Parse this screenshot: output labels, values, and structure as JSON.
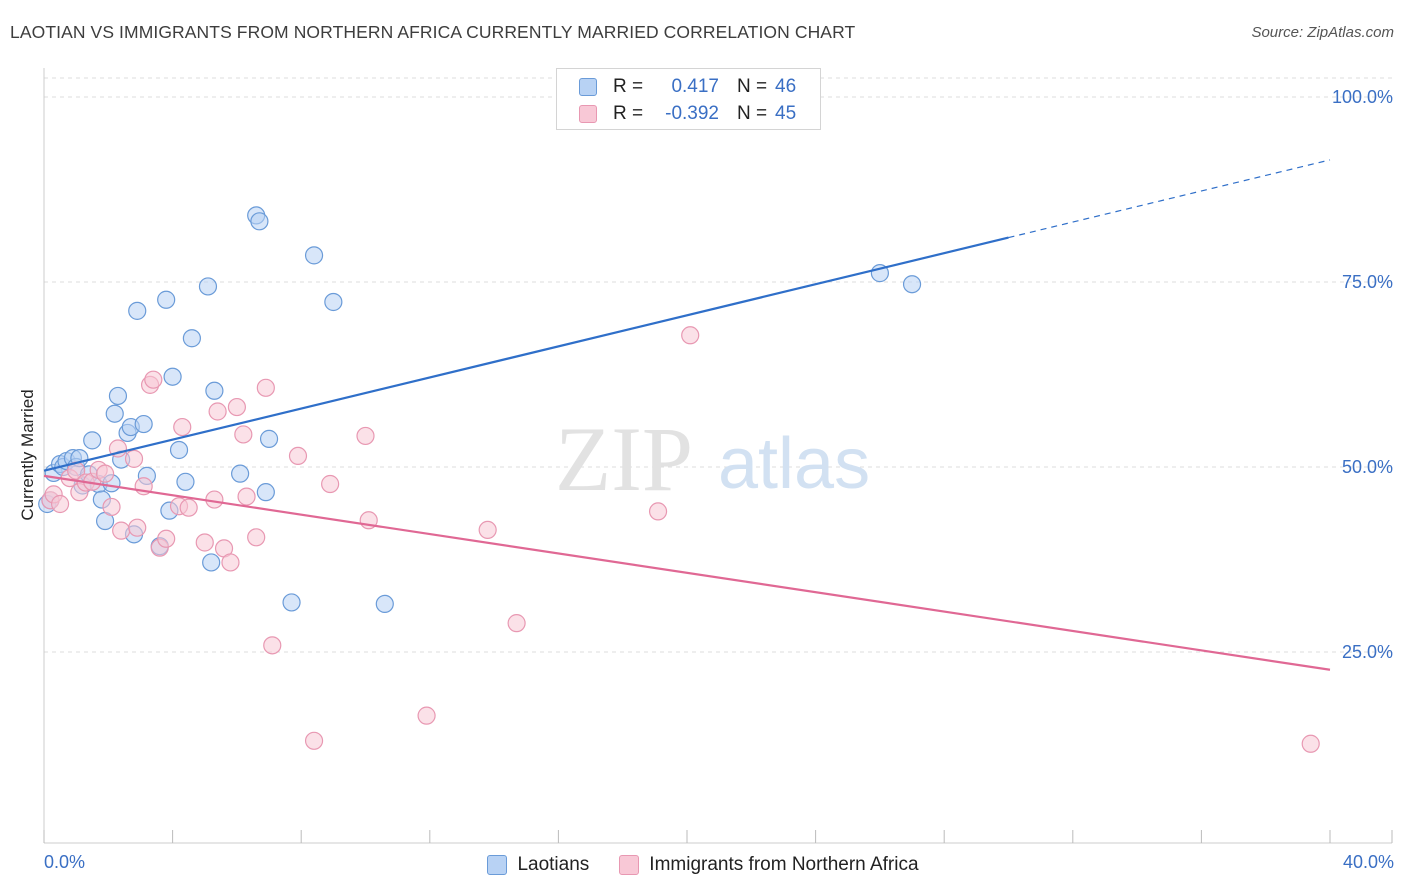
{
  "title": "LAOTIAN VS IMMIGRANTS FROM NORTHERN AFRICA CURRENTLY MARRIED CORRELATION CHART",
  "source": "Source: ZipAtlas.com",
  "watermark": {
    "zip": "ZIP",
    "atlas": "atlas"
  },
  "legend": {
    "rows": [
      {
        "r_label": "R =",
        "r_value": "0.417",
        "n_label": "N =",
        "n_value": "46"
      },
      {
        "r_label": "R =",
        "r_value": "-0.392",
        "n_label": "N =",
        "n_value": "45"
      }
    ]
  },
  "bottom_legend": {
    "series1": "Laotians",
    "series2": "Immigrants from Northern Africa"
  },
  "colors": {
    "blue_fill": "#b8d2f4",
    "blue_stroke": "#6a9bd8",
    "blue_line": "#2f6fc9",
    "pink_fill": "#f8c8d6",
    "pink_stroke": "#e898b2",
    "pink_line": "#e06894",
    "tick_label": "#3a6fc4",
    "grid": "#dddddd"
  },
  "chart_data": {
    "type": "scatter",
    "title": "LAOTIAN VS IMMIGRANTS FROM NORTHERN AFRICA CURRENTLY MARRIED CORRELATION CHART",
    "xlabel": "",
    "ylabel": "Currently Married",
    "xlim": [
      0,
      40
    ],
    "ylim": [
      0,
      105
    ],
    "x_tick_labels": [
      "0.0%",
      "40.0%"
    ],
    "y_ticks": [
      25,
      50,
      75,
      100
    ],
    "y_tick_labels": [
      "25.0%",
      "50.0%",
      "75.0%",
      "100.0%"
    ],
    "grid": "horizontal dashed",
    "legend_position": "top-center",
    "series": [
      {
        "name": "Laotians",
        "points": [
          [
            0.1,
            45.0
          ],
          [
            0.2,
            45.5
          ],
          [
            0.3,
            49.2
          ],
          [
            0.5,
            50.4
          ],
          [
            0.6,
            50.0
          ],
          [
            0.7,
            50.8
          ],
          [
            0.9,
            51.2
          ],
          [
            1.0,
            50.0
          ],
          [
            1.1,
            51.2
          ],
          [
            1.2,
            47.5
          ],
          [
            1.4,
            49.0
          ],
          [
            1.5,
            53.6
          ],
          [
            1.7,
            47.7
          ],
          [
            1.8,
            45.6
          ],
          [
            1.9,
            42.7
          ],
          [
            2.1,
            47.8
          ],
          [
            2.2,
            57.2
          ],
          [
            2.3,
            59.6
          ],
          [
            2.4,
            51.0
          ],
          [
            2.6,
            54.6
          ],
          [
            2.7,
            55.4
          ],
          [
            2.8,
            40.9
          ],
          [
            2.9,
            71.1
          ],
          [
            3.1,
            55.8
          ],
          [
            3.2,
            48.8
          ],
          [
            3.6,
            39.3
          ],
          [
            3.8,
            72.6
          ],
          [
            3.9,
            44.1
          ],
          [
            4.0,
            62.2
          ],
          [
            4.2,
            52.3
          ],
          [
            4.4,
            48.0
          ],
          [
            4.6,
            67.4
          ],
          [
            5.1,
            74.4
          ],
          [
            5.2,
            37.1
          ],
          [
            5.3,
            60.3
          ],
          [
            6.1,
            49.1
          ],
          [
            6.6,
            84.0
          ],
          [
            6.7,
            83.2
          ],
          [
            6.9,
            46.6
          ],
          [
            7.0,
            53.8
          ],
          [
            7.7,
            31.7
          ],
          [
            8.4,
            78.6
          ],
          [
            9.0,
            72.3
          ],
          [
            10.6,
            31.5
          ],
          [
            26.0,
            76.2
          ],
          [
            27.0,
            74.7
          ]
        ],
        "trend": {
          "x": [
            0,
            30
          ],
          "y": [
            49.5,
            81.0
          ],
          "dashed_extension": {
            "x": [
              30,
              40
            ],
            "y": [
              81.0,
              91.5
            ]
          }
        }
      },
      {
        "name": "Immigrants from Northern Africa",
        "points": [
          [
            0.2,
            45.5
          ],
          [
            0.3,
            46.3
          ],
          [
            0.5,
            45.0
          ],
          [
            0.8,
            48.5
          ],
          [
            1.0,
            49.5
          ],
          [
            1.1,
            46.6
          ],
          [
            1.3,
            47.9
          ],
          [
            1.5,
            48.0
          ],
          [
            1.7,
            49.6
          ],
          [
            1.9,
            49.1
          ],
          [
            2.1,
            44.6
          ],
          [
            2.3,
            52.5
          ],
          [
            2.4,
            41.4
          ],
          [
            2.8,
            51.1
          ],
          [
            2.9,
            41.8
          ],
          [
            3.1,
            47.4
          ],
          [
            3.3,
            61.1
          ],
          [
            3.4,
            61.8
          ],
          [
            3.6,
            39.1
          ],
          [
            3.8,
            40.3
          ],
          [
            4.2,
            44.7
          ],
          [
            4.3,
            55.4
          ],
          [
            4.5,
            44.5
          ],
          [
            5.0,
            39.8
          ],
          [
            5.3,
            45.6
          ],
          [
            5.4,
            57.5
          ],
          [
            5.6,
            39.0
          ],
          [
            5.8,
            37.1
          ],
          [
            6.0,
            58.1
          ],
          [
            6.2,
            54.4
          ],
          [
            6.3,
            46.0
          ],
          [
            6.6,
            40.5
          ],
          [
            6.9,
            60.7
          ],
          [
            7.1,
            25.9
          ],
          [
            7.9,
            51.5
          ],
          [
            8.4,
            13.0
          ],
          [
            8.9,
            47.7
          ],
          [
            10.0,
            54.2
          ],
          [
            10.1,
            42.8
          ],
          [
            11.9,
            16.4
          ],
          [
            13.8,
            41.5
          ],
          [
            14.7,
            28.9
          ],
          [
            19.1,
            44.0
          ],
          [
            20.1,
            67.8
          ],
          [
            39.4,
            12.6
          ]
        ],
        "trend": {
          "x": [
            0,
            40
          ],
          "y": [
            48.8,
            22.6
          ]
        }
      }
    ]
  }
}
